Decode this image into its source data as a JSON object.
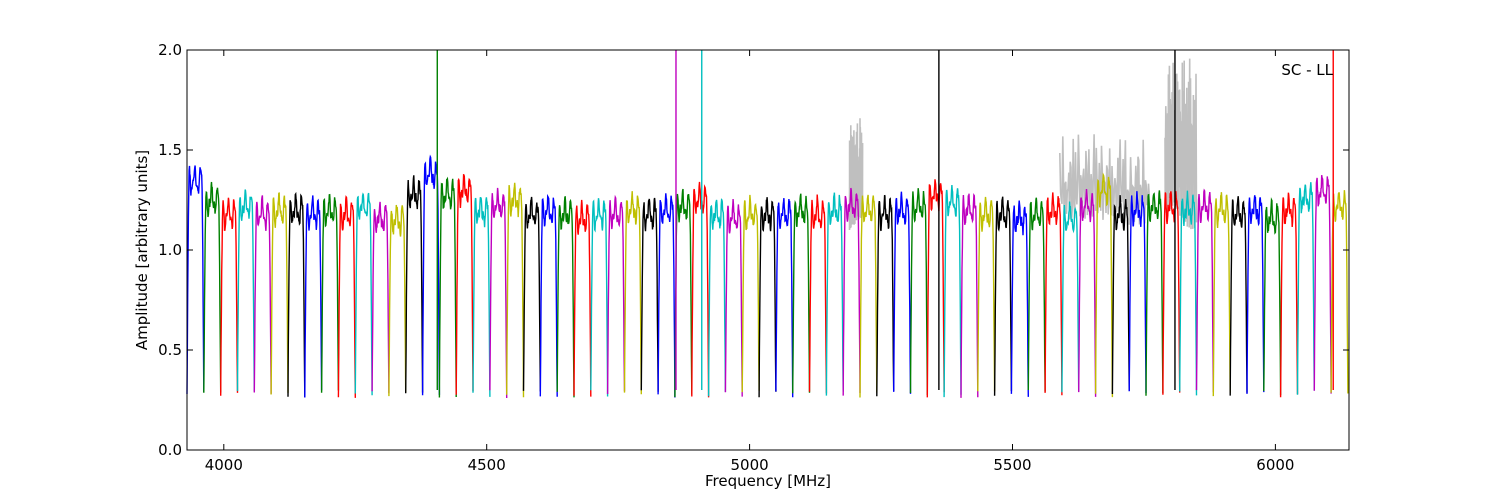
{
  "chart_data": {
    "type": "line",
    "title": "",
    "annotation": "SC - LL",
    "xlabel": "Frequency [MHz]",
    "ylabel": "Amplitude [arbitrary units]",
    "xlim": [
      3930,
      6140
    ],
    "ylim": [
      0.0,
      2.0
    ],
    "xticks": [
      4000,
      4500,
      5000,
      5500,
      6000
    ],
    "xtick_labels": [
      "4000",
      "4500",
      "5000",
      "5500",
      "6000"
    ],
    "yticks": [
      0.0,
      0.5,
      1.0,
      1.5,
      2.0
    ],
    "ytick_labels": [
      "0.0",
      "0.5",
      "1.0",
      "1.5",
      "2.0"
    ],
    "grid": false,
    "legend": "none",
    "color_cycle": [
      "#0000ff",
      "#008000",
      "#ff0000",
      "#00bfbf",
      "#bf00bf",
      "#bfbf00",
      "#000000"
    ],
    "baseline_color": "#bfbfbf",
    "band_width_mhz": 32,
    "band_starts_mhz": [
      3930,
      3962,
      3994,
      4026,
      4058,
      4090,
      4122,
      4154,
      4186,
      4218,
      4250,
      4282,
      4314,
      4346,
      4378,
      4410,
      4442,
      4474,
      4506,
      4538,
      4570,
      4602,
      4634,
      4666,
      4698,
      4730,
      4762,
      4794,
      4826,
      4858,
      4890,
      4922,
      4954,
      4986,
      5018,
      5050,
      5082,
      5114,
      5146,
      5178,
      5210,
      5242,
      5274,
      5306,
      5338,
      5370,
      5402,
      5434,
      5466,
      5498,
      5530,
      5562,
      5594,
      5626,
      5658,
      5690,
      5722,
      5754,
      5786,
      5818,
      5850,
      5882,
      5914,
      5946,
      5978,
      6010,
      6042,
      6074,
      6106
    ],
    "band_plateau": [
      1.35,
      1.25,
      1.18,
      1.22,
      1.18,
      1.2,
      1.2,
      1.18,
      1.2,
      1.18,
      1.22,
      1.16,
      1.15,
      1.28,
      1.38,
      1.28,
      1.3,
      1.2,
      1.22,
      1.25,
      1.18,
      1.2,
      1.18,
      1.16,
      1.18,
      1.18,
      1.2,
      1.18,
      1.2,
      1.22,
      1.25,
      1.18,
      1.16,
      1.18,
      1.18,
      1.18,
      1.2,
      1.18,
      1.2,
      1.22,
      1.2,
      1.18,
      1.2,
      1.22,
      1.28,
      1.24,
      1.2,
      1.18,
      1.18,
      1.16,
      1.18,
      1.2,
      1.16,
      1.22,
      1.3,
      1.18,
      1.2,
      1.22,
      1.22,
      1.2,
      1.22,
      1.2,
      1.18,
      1.2,
      1.16,
      1.2,
      1.26,
      1.3,
      1.22
    ],
    "spikes": [
      {
        "x": 4406,
        "y": 2.0,
        "color": "#008000"
      },
      {
        "x": 4860,
        "y": 2.0,
        "color": "#bf00bf"
      },
      {
        "x": 4909,
        "y": 2.0,
        "color": "#00bfbf"
      },
      {
        "x": 5360,
        "y": 2.0,
        "color": "#000000"
      },
      {
        "x": 5809,
        "y": 2.0,
        "color": "#000000"
      },
      {
        "x": 6110,
        "y": 2.0,
        "color": "#ff0000"
      }
    ],
    "rfi_regions": [
      {
        "x": [
          5190,
          5215
        ],
        "peak": 1.7
      },
      {
        "x": [
          5590,
          5760
        ],
        "peak": 1.58
      },
      {
        "x": [
          5790,
          5850
        ],
        "peak": 2.0
      }
    ]
  }
}
